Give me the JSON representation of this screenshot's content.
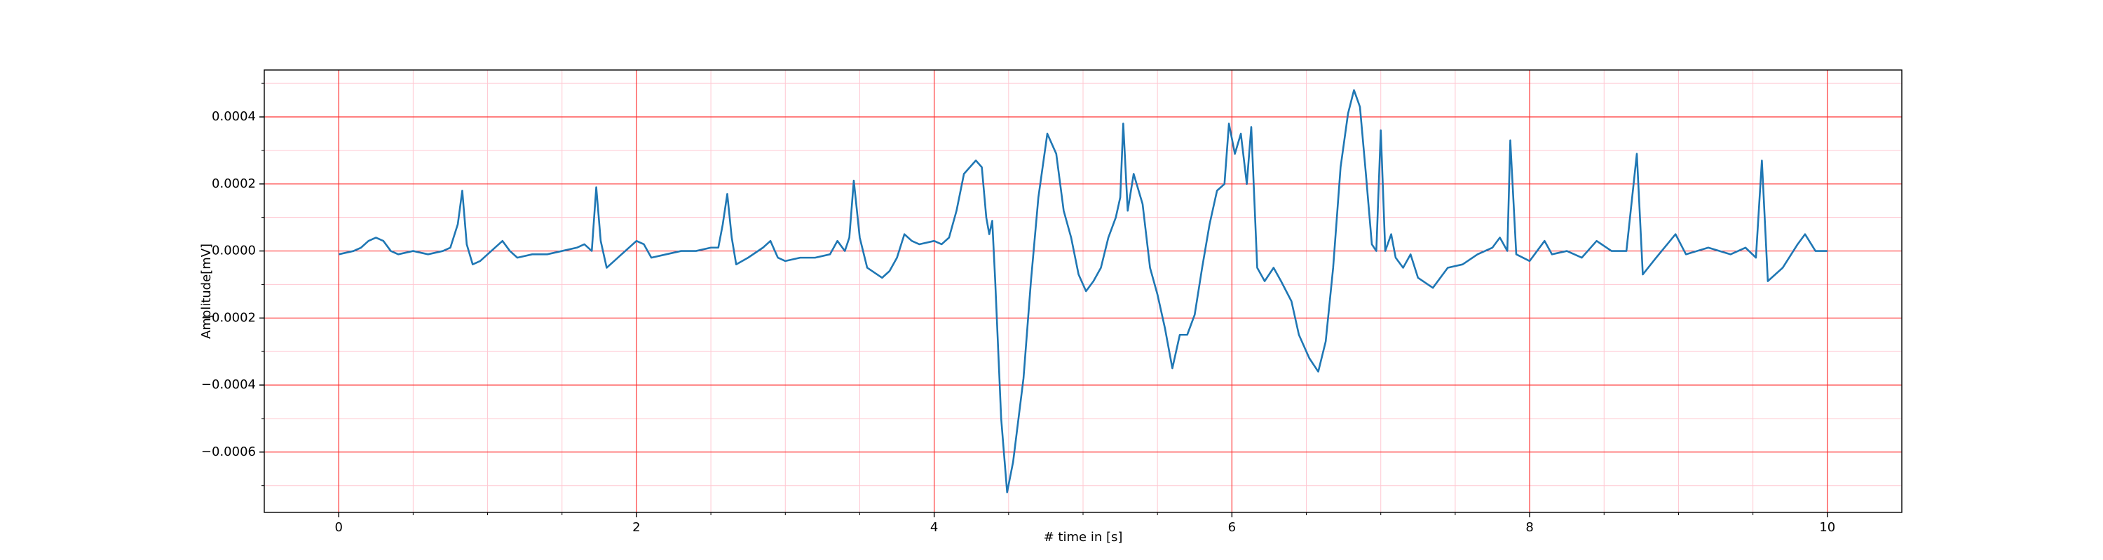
{
  "chart_data": {
    "type": "line",
    "xlabel": "# time in [s]",
    "ylabel": "Amplitude[mV]",
    "xlim": [
      -0.5,
      10.5
    ],
    "ylim": [
      -0.00078,
      0.00054
    ],
    "xticks": [
      0,
      2,
      4,
      6,
      8,
      10
    ],
    "yticks": [
      {
        "value": -0.0006,
        "label": "−0.0006"
      },
      {
        "value": -0.0004,
        "label": "−0.0004"
      },
      {
        "value": -0.0002,
        "label": "−0.0002"
      },
      {
        "value": 0,
        "label": "0.0000"
      },
      0.0002,
      0.0004
    ],
    "xminorticks": [
      0.5,
      1,
      1.5,
      2.5,
      3,
      3.5,
      4.5,
      5,
      5.5,
      6.5,
      7,
      7.5,
      8.5,
      9,
      9.5
    ],
    "yminorticks": [
      -0.0007,
      -0.0005,
      -0.0003,
      -0.0001,
      0.0001,
      0.0003,
      0.0005
    ],
    "grid": true,
    "grid_color": "#ff3333",
    "minor_grid_color": "#ffc8d2",
    "x": [
      0,
      0.1,
      0.15,
      0.2,
      0.25,
      0.3,
      0.35,
      0.4,
      0.5,
      0.6,
      0.7,
      0.75,
      0.8,
      0.83,
      0.86,
      0.9,
      0.95,
      1.0,
      1.1,
      1.15,
      1.2,
      1.3,
      1.4,
      1.5,
      1.6,
      1.65,
      1.7,
      1.73,
      1.76,
      1.8,
      1.85,
      1.9,
      2.0,
      2.05,
      2.1,
      2.2,
      2.3,
      2.4,
      2.5,
      2.55,
      2.58,
      2.61,
      2.64,
      2.67,
      2.75,
      2.85,
      2.9,
      2.95,
      3.0,
      3.1,
      3.2,
      3.3,
      3.35,
      3.4,
      3.43,
      3.46,
      3.5,
      3.55,
      3.65,
      3.7,
      3.75,
      3.8,
      3.85,
      3.9,
      4.0,
      4.05,
      4.1,
      4.15,
      4.2,
      4.28,
      4.32,
      4.35,
      4.37,
      4.39,
      4.41,
      4.45,
      4.49,
      4.53,
      4.6,
      4.65,
      4.7,
      4.76,
      4.82,
      4.87,
      4.92,
      4.97,
      5.02,
      5.07,
      5.12,
      5.17,
      5.22,
      5.25,
      5.27,
      5.3,
      5.34,
      5.4,
      5.45,
      5.5,
      5.55,
      5.6,
      5.65,
      5.7,
      5.75,
      5.8,
      5.85,
      5.9,
      5.95,
      5.98,
      6.02,
      6.06,
      6.1,
      6.13,
      6.17,
      6.22,
      6.28,
      6.33,
      6.4,
      6.45,
      6.52,
      6.58,
      6.63,
      6.68,
      6.73,
      6.78,
      6.82,
      6.86,
      6.9,
      6.94,
      6.97,
      7.0,
      7.03,
      7.07,
      7.1,
      7.15,
      7.2,
      7.25,
      7.35,
      7.45,
      7.55,
      7.65,
      7.75,
      7.8,
      7.85,
      7.87,
      7.91,
      8.0,
      8.1,
      8.15,
      8.25,
      8.35,
      8.45,
      8.55,
      8.65,
      8.72,
      8.76,
      8.85,
      8.98,
      9.05,
      9.2,
      9.35,
      9.45,
      9.52,
      9.56,
      9.6,
      9.7,
      9.8,
      9.85,
      9.92,
      10.0
    ],
    "series": [
      {
        "color": "#1f77b4",
        "values": [
          -1e-05,
          0,
          1e-05,
          3e-05,
          4e-05,
          3e-05,
          0,
          -1e-05,
          0,
          -1e-05,
          0,
          1e-05,
          8e-05,
          0.00018,
          2e-05,
          -4e-05,
          -3e-05,
          -1e-05,
          3e-05,
          0,
          -2e-05,
          -1e-05,
          -1e-05,
          0,
          1e-05,
          2e-05,
          0,
          0.00019,
          3e-05,
          -5e-05,
          -3e-05,
          -1e-05,
          3e-05,
          2e-05,
          -2e-05,
          -1e-05,
          0,
          0,
          1e-05,
          1e-05,
          8e-05,
          0.00017,
          4e-05,
          -4e-05,
          -2e-05,
          1e-05,
          3e-05,
          -2e-05,
          -3e-05,
          -2e-05,
          -2e-05,
          -1e-05,
          3e-05,
          0,
          4e-05,
          0.00021,
          4e-05,
          -5e-05,
          -8e-05,
          -6e-05,
          -2e-05,
          5e-05,
          3e-05,
          2e-05,
          3e-05,
          2e-05,
          4e-05,
          0.00012,
          0.00023,
          0.00027,
          0.00025,
          0.0001,
          5e-05,
          9e-05,
          -9e-05,
          -0.0005,
          -0.00072,
          -0.00063,
          -0.00038,
          -9e-05,
          0.00016,
          0.00035,
          0.00029,
          0.00012,
          4e-05,
          -7e-05,
          -0.00012,
          -9e-05,
          -5e-05,
          4e-05,
          0.0001,
          0.00016,
          0.00038,
          0.00012,
          0.00023,
          0.00014,
          -5e-05,
          -0.00013,
          -0.00023,
          -0.00035,
          -0.00025,
          -0.00025,
          -0.00019,
          -5e-05,
          8e-05,
          0.00018,
          0.0002,
          0.00038,
          0.00029,
          0.00035,
          0.0002,
          0.00037,
          -5e-05,
          -9e-05,
          -5e-05,
          -9e-05,
          -0.00015,
          -0.00025,
          -0.00032,
          -0.00036,
          -0.00027,
          -5e-05,
          0.00025,
          0.00041,
          0.00048,
          0.00043,
          0.00023,
          2e-05,
          0,
          0.00036,
          0,
          5e-05,
          -2e-05,
          -5e-05,
          -1e-05,
          -8e-05,
          -0.00011,
          -5e-05,
          -4e-05,
          -1e-05,
          1e-05,
          4e-05,
          0,
          0.00033,
          -1e-05,
          -3e-05,
          3e-05,
          -1e-05,
          0,
          -2e-05,
          3e-05,
          0,
          0,
          0.00029,
          -7e-05,
          -2e-05,
          5e-05,
          -1e-05,
          1e-05,
          -1e-05,
          1e-05,
          -2e-05,
          0.00027,
          -9e-05,
          -5e-05,
          2e-05,
          5e-05,
          0,
          0
        ]
      }
    ]
  }
}
